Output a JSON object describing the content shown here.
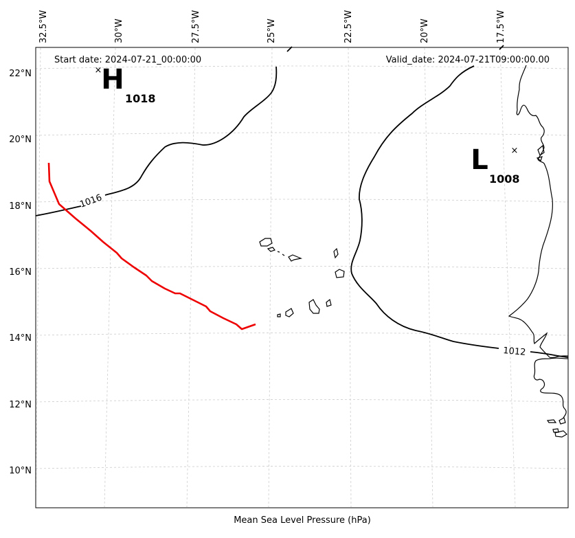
{
  "map": {
    "start_date_text": "Start date: 2024-07-21_00:00:00",
    "valid_date_text": "Valid_date: 2024-07-21T09:00:00.00",
    "xlabel": "Mean Sea Level Pressure (hPa)",
    "lon_labels": [
      "32.5°W",
      "30°W",
      "27.5°W",
      "25°W",
      "22.5°W",
      "20°W",
      "17.5°W"
    ],
    "lat_labels": [
      "22°N",
      "20°N",
      "18°N",
      "16°N",
      "14°N",
      "12°N",
      "10°N"
    ],
    "extent": {
      "lon": [
        -33,
        -16.5
      ],
      "lat": [
        9,
        22.8
      ]
    },
    "gridlines": true,
    "high": {
      "letter": "H",
      "value": "1018",
      "marker": "x"
    },
    "low": {
      "letter": "L",
      "value": "1008",
      "marker": "x"
    },
    "isobars": [
      {
        "label": "1016"
      },
      {
        "label": "1012"
      }
    ],
    "track": {
      "color": "#ee0000"
    },
    "colors": {
      "track": "#ee0000",
      "isobar": "#000000",
      "coast": "#000000",
      "grid": "#cccccc"
    }
  }
}
